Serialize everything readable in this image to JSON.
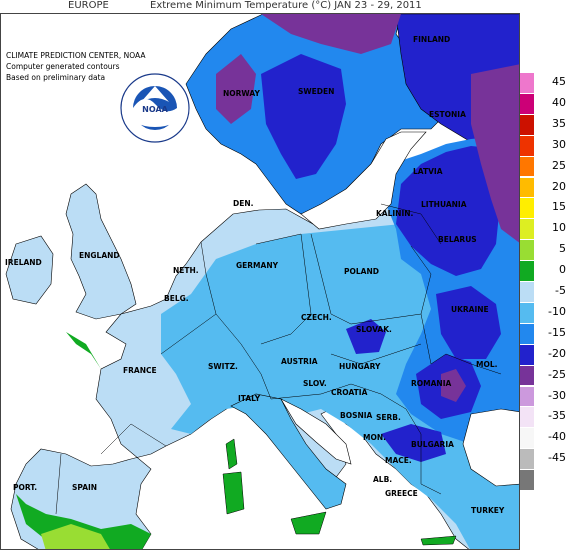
{
  "title": {
    "region": "EUROPE",
    "product": "Extreme Minimum Temperature (°C) JAN 23 - 29, 2011"
  },
  "source_notes": [
    "CLIMATE PREDICTION CENTER, NOAA",
    "Computer generated contours",
    "Based on preliminary data"
  ],
  "logo": {
    "center_text": "NOAA",
    "ring_top": "NATIONAL OCEANIC AND ATMOSPHERIC ADMINISTRATION",
    "ring_bottom": "U.S. DEPARTMENT OF COMMERCE"
  },
  "country_labels": [
    {
      "id": "finland",
      "text": "FINLAND"
    },
    {
      "id": "norway",
      "text": "NORWAY"
    },
    {
      "id": "sweden",
      "text": "SWEDEN"
    },
    {
      "id": "estonia",
      "text": "ESTONIA"
    },
    {
      "id": "latvia",
      "text": "LATVIA"
    },
    {
      "id": "lithuania",
      "text": "LITHUANIA"
    },
    {
      "id": "kalinin",
      "text": "KALININ."
    },
    {
      "id": "den",
      "text": "DEN."
    },
    {
      "id": "belarus",
      "text": "BELARUS"
    },
    {
      "id": "ireland",
      "text": "IRELAND"
    },
    {
      "id": "england",
      "text": "ENGLAND"
    },
    {
      "id": "neth",
      "text": "NETH."
    },
    {
      "id": "germany",
      "text": "GERMANY"
    },
    {
      "id": "poland",
      "text": "POLAND"
    },
    {
      "id": "belg",
      "text": "BELG."
    },
    {
      "id": "czech",
      "text": "CZECH."
    },
    {
      "id": "slovak",
      "text": "SLOVAK."
    },
    {
      "id": "ukraine",
      "text": "UKRAINE"
    },
    {
      "id": "switz",
      "text": "SWITZ."
    },
    {
      "id": "austria",
      "text": "AUSTRIA"
    },
    {
      "id": "hungary",
      "text": "HUNGARY"
    },
    {
      "id": "mol",
      "text": "MOL."
    },
    {
      "id": "france",
      "text": "FRANCE"
    },
    {
      "id": "slov",
      "text": "SLOV."
    },
    {
      "id": "romania",
      "text": "ROMANIA"
    },
    {
      "id": "croatia",
      "text": "CROATIA"
    },
    {
      "id": "italy",
      "text": "ITALY"
    },
    {
      "id": "bosnia",
      "text": "BOSNIA"
    },
    {
      "id": "serb",
      "text": "SERB."
    },
    {
      "id": "mon",
      "text": "MON."
    },
    {
      "id": "bulgaria",
      "text": "BULGARIA"
    },
    {
      "id": "mace",
      "text": "MACE."
    },
    {
      "id": "alb",
      "text": "ALB."
    },
    {
      "id": "port",
      "text": "PORT."
    },
    {
      "id": "spain",
      "text": "SPAIN"
    },
    {
      "id": "greece",
      "text": "GREECE"
    },
    {
      "id": "turkey",
      "text": "TURKEY"
    }
  ],
  "legend": [
    {
      "label": "45",
      "color": "#ee77cc"
    },
    {
      "label": "40",
      "color": "#cc0077"
    },
    {
      "label": "35",
      "color": "#cc1100"
    },
    {
      "label": "30",
      "color": "#ee3300"
    },
    {
      "label": "25",
      "color": "#ff7700"
    },
    {
      "label": "20",
      "color": "#ffbb00"
    },
    {
      "label": "15",
      "color": "#ffee00"
    },
    {
      "label": "10",
      "color": "#ddee22"
    },
    {
      "label": "5",
      "color": "#99dd33"
    },
    {
      "label": "0",
      "color": "#11aa22"
    },
    {
      "label": "-5",
      "color": "#bbddf5"
    },
    {
      "label": "-10",
      "color": "#55bbf0"
    },
    {
      "label": "-15",
      "color": "#2288ee"
    },
    {
      "label": "-20",
      "color": "#2222cc"
    },
    {
      "label": "-25",
      "color": "#773399"
    },
    {
      "label": "-30",
      "color": "#cc99dd"
    },
    {
      "label": "-35",
      "color": "#f3e3f6"
    },
    {
      "label": "-40",
      "color": "#f7f7f7"
    },
    {
      "label": "-45",
      "color": "#bbbbbb"
    },
    {
      "label": "",
      "color": "#777777"
    }
  ]
}
